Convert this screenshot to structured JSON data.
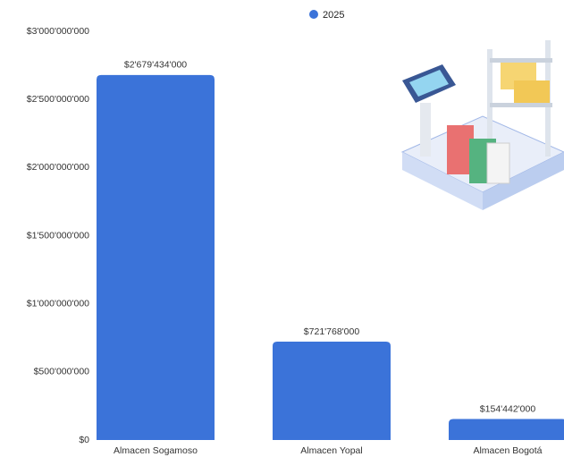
{
  "chart_data": {
    "type": "bar",
    "categories": [
      "Almacen Sogamoso",
      "Almacen Yopal",
      "Almacen Bogotá"
    ],
    "series": [
      {
        "name": "2025",
        "color": "#3b73d9",
        "values": [
          2679434000,
          721768000,
          154442000
        ],
        "value_labels": [
          "$2'679'434'000",
          "$721'768'000",
          "$154'442'000"
        ]
      }
    ],
    "ylim": [
      0,
      3000000000
    ],
    "yticks": [
      {
        "value": 0,
        "label": "$0"
      },
      {
        "value": 500000000,
        "label": "$500'000'000"
      },
      {
        "value": 1000000000,
        "label": "$1'000'000'000"
      },
      {
        "value": 1500000000,
        "label": "$1'500'000'000"
      },
      {
        "value": 2000000000,
        "label": "$2'000'000'000"
      },
      {
        "value": 2500000000,
        "label": "$2'500'000'000"
      },
      {
        "value": 3000000000,
        "label": "$3'000'000'000"
      }
    ],
    "grid": false
  }
}
